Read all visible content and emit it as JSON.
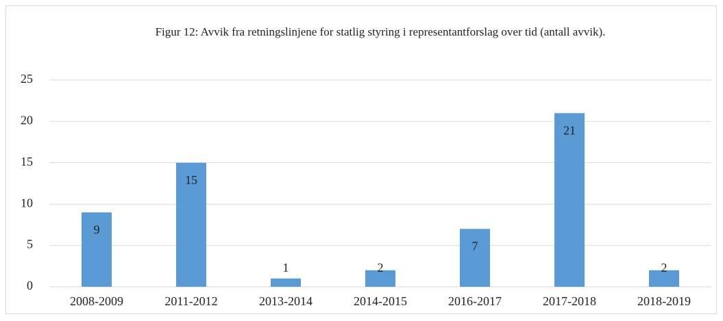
{
  "chart_data": {
    "type": "bar",
    "title": "Figur 12: Avvik fra retningslinjene  for statlig styring i representantforslag over tid (antall avvik).",
    "categories": [
      "2008-2009",
      "2011-2012",
      "2013-2014",
      "2014-2015",
      "2016-2017",
      "2017-2018",
      "2018-2019"
    ],
    "values": [
      9,
      15,
      1,
      2,
      7,
      21,
      2
    ],
    "color": "#5b9bd5",
    "ylim": [
      0,
      25
    ],
    "yticks": [
      0,
      5,
      10,
      15,
      20,
      25
    ],
    "grid": true
  }
}
